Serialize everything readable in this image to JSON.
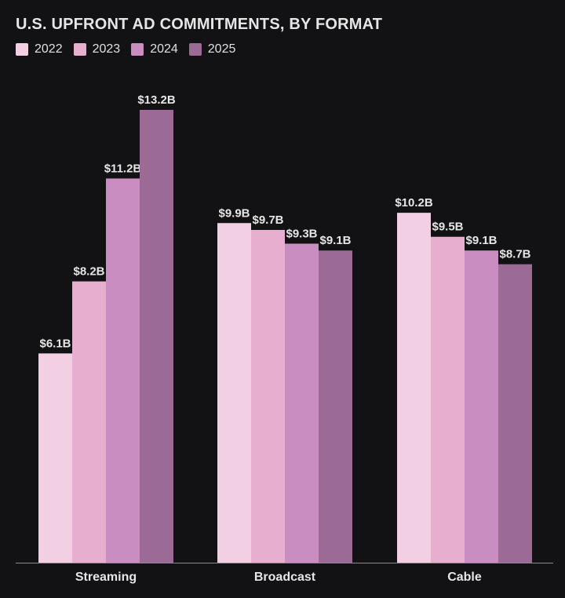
{
  "chart_data": {
    "type": "bar",
    "title": "U.S. UPFRONT AD COMMITMENTS, BY FORMAT",
    "categories": [
      "Streaming",
      "Broadcast",
      "Cable"
    ],
    "series": [
      {
        "name": "2022",
        "color": "#f2cfe3",
        "values": [
          6.1,
          9.9,
          10.2
        ],
        "labels": [
          "$6.1B",
          "$9.9B",
          "$10.2B"
        ]
      },
      {
        "name": "2023",
        "color": "#e8aed0",
        "values": [
          8.2,
          9.7,
          9.5
        ],
        "labels": [
          "$8.2B",
          "$9.7B",
          "$9.5B"
        ]
      },
      {
        "name": "2024",
        "color": "#c98dc2",
        "values": [
          11.2,
          9.3,
          9.1
        ],
        "labels": [
          "$11.2B",
          "$9.3B",
          "$9.1B"
        ]
      },
      {
        "name": "2025",
        "color": "#9b6b95",
        "values": [
          13.2,
          9.1,
          8.7
        ],
        "labels": [
          "$13.2B",
          "$9.1B",
          "$8.7B"
        ]
      }
    ],
    "xlabel": "",
    "ylabel": "",
    "ylim": [
      0,
      13.2
    ],
    "grid": false,
    "legend_position": "top-left"
  },
  "colors": {
    "background": "#121214",
    "text": "#e6e6e6",
    "axis": "#8a8a8a"
  }
}
